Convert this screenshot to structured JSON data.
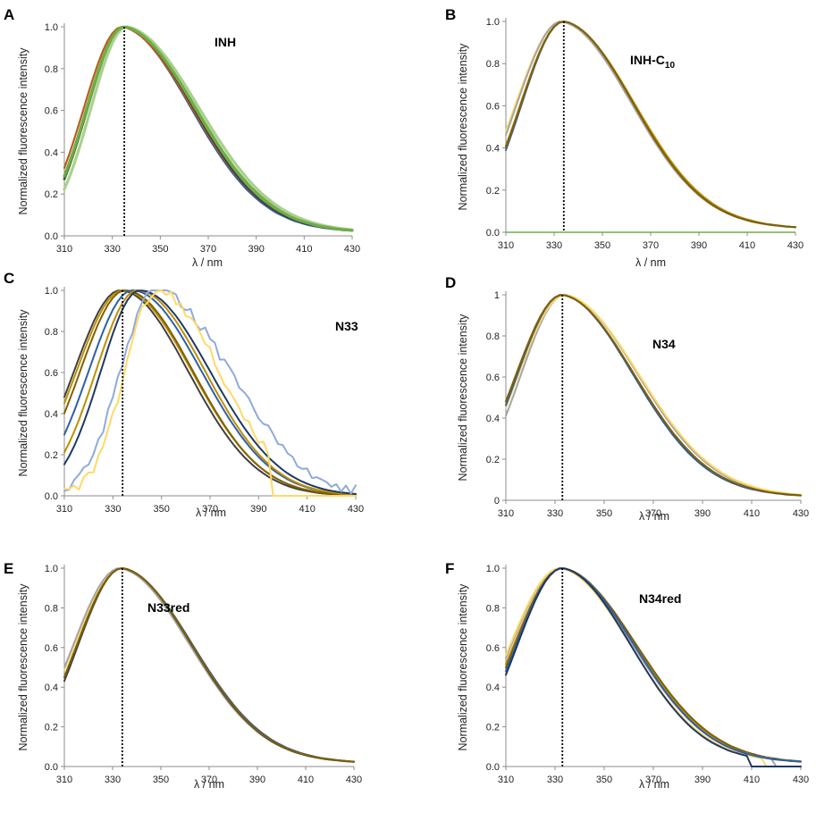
{
  "figure": {
    "xlabel": "λ / nm",
    "ylabel": "Normalized fluorescence intensity",
    "colors": {
      "navy": "#1f3864",
      "blue": "#2f5fa8",
      "gold": "#bf8f00",
      "yellow": "#ffd966",
      "gray": "#a5a5a5",
      "green": "#70ad47",
      "lightgreen": "#a9d18e",
      "dark": "#404040",
      "lightblue": "#8faadc",
      "orange": "#c55a11",
      "olive": "#7f6000"
    }
  },
  "chart_data": [
    {
      "panel": "A",
      "title": "INH",
      "subscript": "",
      "type": "line",
      "xlabel": "λ / nm",
      "ylabel": "Normalized fluorescence intensity",
      "xlim": [
        310,
        430
      ],
      "ylim": [
        0,
        1.0
      ],
      "xticks": [
        "310",
        "330",
        "350",
        "370",
        "390",
        "410",
        "430"
      ],
      "yticks": [
        "0.0",
        "0.2",
        "0.4",
        "0.6",
        "0.8",
        "1.0"
      ],
      "peak_marker_x": 335,
      "series": [
        {
          "name": "s1",
          "color": "green",
          "peak": 335,
          "w_left": 15.5,
          "w_right": 30,
          "values": []
        },
        {
          "name": "s2",
          "color": "lightgreen",
          "peak": 336,
          "w_left": 15,
          "w_right": 30.5,
          "values": []
        },
        {
          "name": "s3",
          "color": "blue",
          "peak": 334,
          "w_left": 16,
          "w_right": 29,
          "values": []
        },
        {
          "name": "s4",
          "color": "orange",
          "peak": 334,
          "w_left": 16,
          "w_right": 29.5,
          "values": []
        },
        {
          "name": "s5",
          "color": "dark",
          "peak": 335,
          "w_left": 15.5,
          "w_right": 29,
          "values": []
        },
        {
          "name": "s6",
          "color": "green",
          "peak": 335,
          "w_left": 15.8,
          "w_right": 29.8,
          "values": []
        }
      ]
    },
    {
      "panel": "B",
      "title": "INH-C",
      "subscript": "10",
      "type": "line",
      "xlabel": "λ / nm",
      "ylabel": "Normalized fluorescence intensity",
      "xlim": [
        310,
        430
      ],
      "ylim": [
        0,
        1.0
      ],
      "xticks": [
        "310",
        "330",
        "350",
        "370",
        "390",
        "410",
        "430"
      ],
      "yticks": [
        "0.0",
        "0.2",
        "0.4",
        "0.6",
        "0.8",
        "1.0"
      ],
      "peak_marker_x": 334,
      "baseline": {
        "color": "green",
        "value": 0
      },
      "series": [
        {
          "name": "s1",
          "color": "yellow",
          "peak": 333,
          "w_left": 19,
          "w_right": 29.5,
          "values": []
        },
        {
          "name": "s2",
          "color": "gold",
          "peak": 334,
          "w_left": 18,
          "w_right": 29.5,
          "values": []
        },
        {
          "name": "s3",
          "color": "blue",
          "peak": 334,
          "w_left": 17.5,
          "w_right": 29,
          "values": []
        },
        {
          "name": "s4",
          "color": "gray",
          "peak": 333,
          "w_left": 18.5,
          "w_right": 29.3,
          "values": []
        },
        {
          "name": "s5",
          "color": "olive",
          "peak": 334,
          "w_left": 17.8,
          "w_right": 29,
          "values": []
        }
      ]
    },
    {
      "panel": "C",
      "title": "N33",
      "subscript": "",
      "type": "line",
      "xlabel": "λ / nm",
      "ylabel": "Normalized fluorescence intensity",
      "xlim": [
        310,
        430
      ],
      "ylim": [
        0,
        1.0
      ],
      "xticks": [
        "310",
        "330",
        "350",
        "370",
        "390",
        "410",
        "430"
      ],
      "yticks": [
        "0.0",
        "0.2",
        "0.4",
        "0.6",
        "0.8",
        "1.0"
      ],
      "peak_marker_x": 334,
      "series": [
        {
          "name": "s1",
          "color": "dark",
          "peak": 333,
          "w_left": 19,
          "w_right": 28,
          "values": []
        },
        {
          "name": "s2",
          "color": "gold",
          "peak": 334,
          "w_left": 19,
          "w_right": 28.5,
          "values": []
        },
        {
          "name": "s3",
          "color": "olive",
          "peak": 335,
          "w_left": 18.5,
          "w_right": 28,
          "values": []
        },
        {
          "name": "s4",
          "color": "blue",
          "peak": 338,
          "w_left": 18,
          "w_right": 28.5,
          "values": []
        },
        {
          "name": "s5",
          "color": "gold",
          "peak": 340,
          "w_left": 17,
          "w_right": 28,
          "values": []
        },
        {
          "name": "s6",
          "color": "navy",
          "peak": 341,
          "w_left": 16,
          "w_right": 29,
          "values": []
        },
        {
          "name": "s7",
          "color": "lightblue",
          "peak": 347,
          "w_left": 14,
          "w_right": 31,
          "values": []
        },
        {
          "name": "s8",
          "color": "yellow",
          "peak": 348,
          "w_left": 13,
          "w_right": 26,
          "cut": 395,
          "values": []
        }
      ]
    },
    {
      "panel": "D",
      "title": "N34",
      "subscript": "",
      "type": "line",
      "xlabel": "λ / nm",
      "ylabel": "Normalized fluorescence intensity",
      "xlim": [
        310,
        430
      ],
      "ylim": [
        0,
        1.0
      ],
      "xticks": [
        "310",
        "330",
        "350",
        "370",
        "390",
        "410",
        "430"
      ],
      "yticks": [
        "0",
        "0.2",
        "0.4",
        "0.6",
        "0.8",
        "1"
      ],
      "peak_marker_x": 333,
      "series": [
        {
          "name": "s1",
          "color": "gray",
          "peak": 334,
          "w_left": 18,
          "w_right": 30,
          "values": []
        },
        {
          "name": "s2",
          "color": "yellow",
          "peak": 334,
          "w_left": 19,
          "w_right": 30.5,
          "values": []
        },
        {
          "name": "s3",
          "color": "gold",
          "peak": 333,
          "w_left": 19,
          "w_right": 29.5,
          "values": []
        },
        {
          "name": "s4",
          "color": "blue",
          "peak": 333,
          "w_left": 18.5,
          "w_right": 29,
          "values": []
        },
        {
          "name": "s5",
          "color": "olive",
          "peak": 333,
          "w_left": 19,
          "w_right": 29.5,
          "values": []
        }
      ]
    },
    {
      "panel": "E",
      "title": "N33red",
      "subscript": "",
      "type": "line",
      "xlabel": "λ / nm",
      "ylabel": "Normalized fluorescence intensity",
      "xlim": [
        310,
        430
      ],
      "ylim": [
        0,
        1.0
      ],
      "xticks": [
        "310",
        "330",
        "350",
        "370",
        "390",
        "410",
        "430"
      ],
      "yticks": [
        "0.0",
        "0.2",
        "0.4",
        "0.6",
        "0.8",
        "1.0"
      ],
      "peak_marker_x": 334,
      "series": [
        {
          "name": "s1",
          "color": "yellow",
          "peak": 334,
          "w_left": 20,
          "w_right": 29.5,
          "values": []
        },
        {
          "name": "s2",
          "color": "gold",
          "peak": 334,
          "w_left": 19,
          "w_right": 29,
          "values": []
        },
        {
          "name": "s3",
          "color": "gray",
          "peak": 333,
          "w_left": 19.5,
          "w_right": 29.3,
          "values": []
        },
        {
          "name": "s4",
          "color": "blue",
          "peak": 334,
          "w_left": 19,
          "w_right": 29.5,
          "values": []
        },
        {
          "name": "s5",
          "color": "dark",
          "peak": 334,
          "w_left": 18.5,
          "w_right": 29,
          "values": []
        },
        {
          "name": "s6",
          "color": "olive",
          "peak": 334,
          "w_left": 19,
          "w_right": 29.2,
          "values": []
        }
      ]
    },
    {
      "panel": "F",
      "title": "N34red",
      "subscript": "",
      "type": "line",
      "xlabel": "λ / nm",
      "ylabel": "Normalized fluorescence intensity",
      "xlim": [
        310,
        430
      ],
      "ylim": [
        0,
        1.0
      ],
      "xticks": [
        "310",
        "330",
        "350",
        "370",
        "390",
        "410",
        "430"
      ],
      "yticks": [
        "0.0",
        "0.2",
        "0.4",
        "0.6",
        "0.8",
        "1.0"
      ],
      "peak_marker_x": 333,
      "series": [
        {
          "name": "s1",
          "color": "gold",
          "peak": 333,
          "w_left": 20,
          "w_right": 30,
          "values": []
        },
        {
          "name": "s2",
          "color": "olive",
          "peak": 333,
          "w_left": 19.5,
          "w_right": 30.5,
          "values": []
        },
        {
          "name": "s3",
          "color": "gray",
          "peak": 332,
          "w_left": 20,
          "w_right": 30,
          "cut": 420,
          "values": []
        },
        {
          "name": "s4",
          "color": "yellow",
          "peak": 332,
          "w_left": 20.5,
          "w_right": 29,
          "cut": 416,
          "values": []
        },
        {
          "name": "s5",
          "color": "blue",
          "peak": 333,
          "w_left": 19,
          "w_right": 29.5,
          "values": []
        },
        {
          "name": "s6",
          "color": "navy",
          "peak": 333,
          "w_left": 18.5,
          "w_right": 28,
          "cut": 410,
          "values": []
        }
      ]
    }
  ]
}
